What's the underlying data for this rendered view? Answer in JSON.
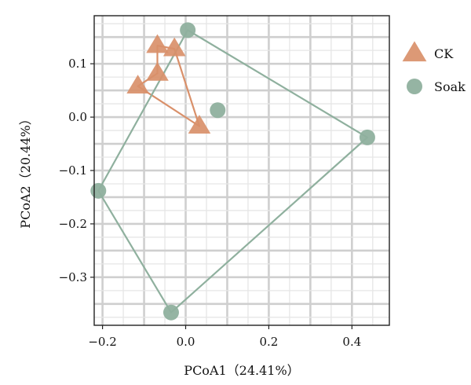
{
  "chart_data": {
    "type": "scatter",
    "title": "",
    "xlabel": "PCoA1（24.41%）",
    "ylabel": "PCoA2（20.44%）",
    "xlim": [
      -0.22,
      0.49
    ],
    "ylim": [
      -0.39,
      0.19
    ],
    "grid": true,
    "legend_position": "right",
    "x_ticks": [
      {
        "value": -0.2,
        "label": "−0.2"
      },
      {
        "value": 0.0,
        "label": "0.0"
      },
      {
        "value": 0.2,
        "label": "0.2"
      },
      {
        "value": 0.4,
        "label": "0.4"
      }
    ],
    "y_ticks": [
      {
        "value": 0.1,
        "label": "0.1"
      },
      {
        "value": 0.0,
        "label": "0.0"
      },
      {
        "value": -0.1,
        "label": "−0.1"
      },
      {
        "value": -0.2,
        "label": "−0.2"
      },
      {
        "value": -0.3,
        "label": "−0.3"
      }
    ],
    "series": [
      {
        "name": "CK",
        "marker": "triangle",
        "color": "#D9906A",
        "points": [
          {
            "x": -0.068,
            "y": 0.134
          },
          {
            "x": -0.027,
            "y": 0.128
          },
          {
            "x": -0.068,
            "y": 0.082
          },
          {
            "x": -0.115,
            "y": 0.058
          },
          {
            "x": 0.033,
            "y": -0.017
          }
        ],
        "hull": [
          2,
          0,
          1,
          4,
          3
        ]
      },
      {
        "name": "Soak",
        "marker": "circle",
        "color": "#8FB09E",
        "points": [
          {
            "x": 0.005,
            "y": 0.163
          },
          {
            "x": 0.077,
            "y": 0.013
          },
          {
            "x": 0.437,
            "y": -0.038
          },
          {
            "x": -0.21,
            "y": -0.138
          },
          {
            "x": -0.035,
            "y": -0.366
          }
        ],
        "hull": [
          0,
          2,
          4,
          3
        ]
      }
    ]
  }
}
